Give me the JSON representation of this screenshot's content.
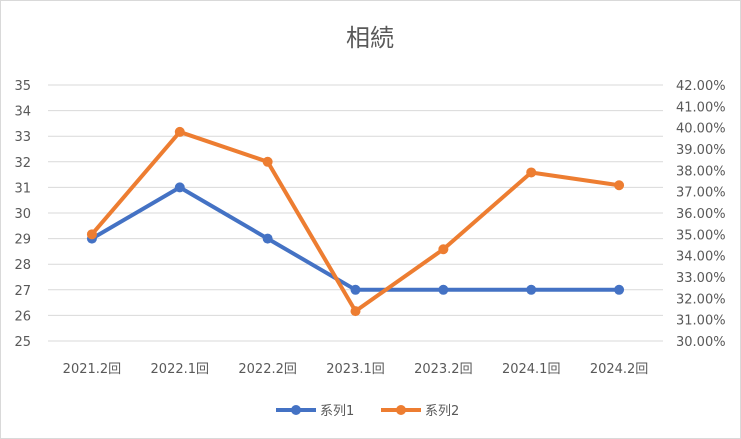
{
  "chart_data": {
    "type": "line",
    "title": "相続",
    "categories": [
      "2021.2回",
      "2022.1回",
      "2022.2回",
      "2023.1回",
      "2023.2回",
      "2024.1回",
      "2024.2回"
    ],
    "y_left": {
      "min": 25,
      "max": 35,
      "step": 1,
      "ticks": [
        "25",
        "26",
        "27",
        "28",
        "29",
        "30",
        "31",
        "32",
        "33",
        "34",
        "35"
      ]
    },
    "y_right": {
      "min": 30,
      "max": 42,
      "step": 1,
      "ticks": [
        "30.00%",
        "31.00%",
        "32.00%",
        "33.00%",
        "34.00%",
        "35.00%",
        "36.00%",
        "37.00%",
        "38.00%",
        "39.00%",
        "40.00%",
        "41.00%",
        "42.00%"
      ]
    },
    "grid": true,
    "legend_position": "bottom",
    "series": [
      {
        "name": "系列1",
        "axis": "left",
        "color": "#4472C4",
        "values": [
          29,
          31,
          29,
          27,
          27,
          27,
          27
        ]
      },
      {
        "name": "系列2",
        "axis": "right",
        "color": "#ED7D31",
        "values": [
          35.0,
          39.8,
          38.4,
          31.4,
          34.3,
          37.9,
          37.3
        ]
      }
    ]
  }
}
